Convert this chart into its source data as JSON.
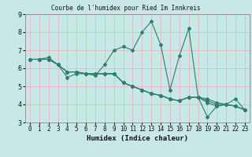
{
  "title": "Courbe de l'humidex pour Ried Im Innkreis",
  "xlabel": "Humidex (Indice chaleur)",
  "background_color": "#c8e8e8",
  "grid_color": "#e8b8b8",
  "line_color": "#2e7d6e",
  "xlim": [
    -0.5,
    23.5
  ],
  "ylim": [
    3,
    9
  ],
  "xticks": [
    0,
    1,
    2,
    3,
    4,
    5,
    6,
    7,
    8,
    9,
    10,
    11,
    12,
    13,
    14,
    15,
    16,
    17,
    18,
    19,
    20,
    21,
    22,
    23
  ],
  "yticks": [
    3,
    4,
    5,
    6,
    7,
    8,
    9
  ],
  "series": [
    [
      6.5,
      6.5,
      6.6,
      6.2,
      5.5,
      5.7,
      5.7,
      5.6,
      6.2,
      7.0,
      7.2,
      7.0,
      8.0,
      8.6,
      7.3,
      4.8,
      6.7,
      8.2,
      4.4,
      3.3,
      3.9,
      4.0,
      4.3,
      3.7
    ],
    [
      6.5,
      6.5,
      6.5,
      6.2,
      5.8,
      5.8,
      5.7,
      5.7,
      5.7,
      5.7,
      5.2,
      5.0,
      4.8,
      4.6,
      4.5,
      4.3,
      4.2,
      4.4,
      4.4,
      4.3,
      4.1,
      4.0,
      3.9,
      3.7
    ],
    [
      6.5,
      6.5,
      6.5,
      6.2,
      5.8,
      5.8,
      5.7,
      5.7,
      5.7,
      5.7,
      5.2,
      5.0,
      4.8,
      4.6,
      4.5,
      4.3,
      4.2,
      4.4,
      4.4,
      4.2,
      4.0,
      4.0,
      3.9,
      3.7
    ],
    [
      6.5,
      6.5,
      6.5,
      6.2,
      5.8,
      5.8,
      5.7,
      5.7,
      5.7,
      5.7,
      5.2,
      5.0,
      4.8,
      4.6,
      4.5,
      4.3,
      4.2,
      4.4,
      4.4,
      4.1,
      3.9,
      4.0,
      3.9,
      3.7
    ]
  ]
}
